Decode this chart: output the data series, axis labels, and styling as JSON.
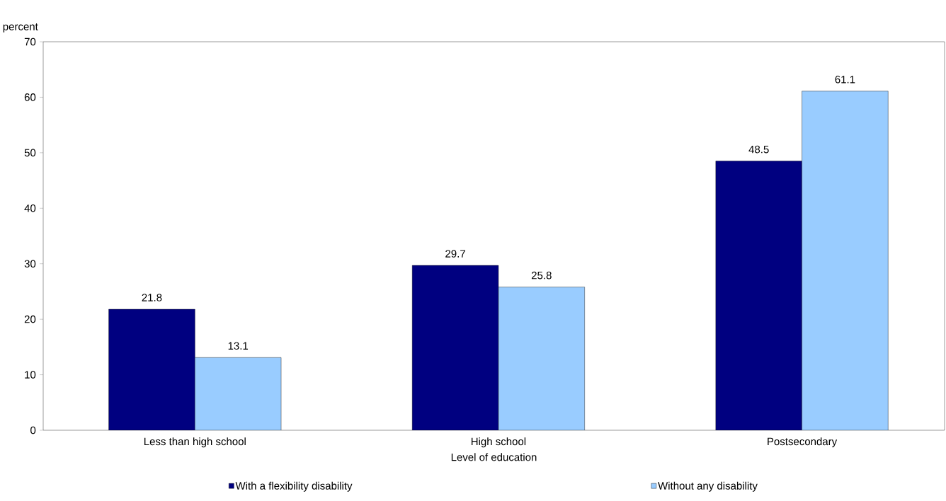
{
  "chart_data": {
    "type": "bar",
    "xlabel": "Level of education",
    "ylabel": "percent",
    "categories": [
      "Less than high school",
      "High school",
      "Postsecondary"
    ],
    "series": [
      {
        "name": "With a flexibility disability",
        "color": "#000080",
        "values": [
          21.8,
          29.7,
          48.5
        ]
      },
      {
        "name": "Without any disability",
        "color": "#99ccff",
        "values": [
          13.1,
          25.8,
          61.1
        ]
      }
    ],
    "ylim": [
      0,
      70
    ],
    "yticks": [
      0,
      10,
      20,
      30,
      40,
      50,
      60,
      70
    ],
    "data_labels": true,
    "legend": "bottom",
    "grid": false
  }
}
